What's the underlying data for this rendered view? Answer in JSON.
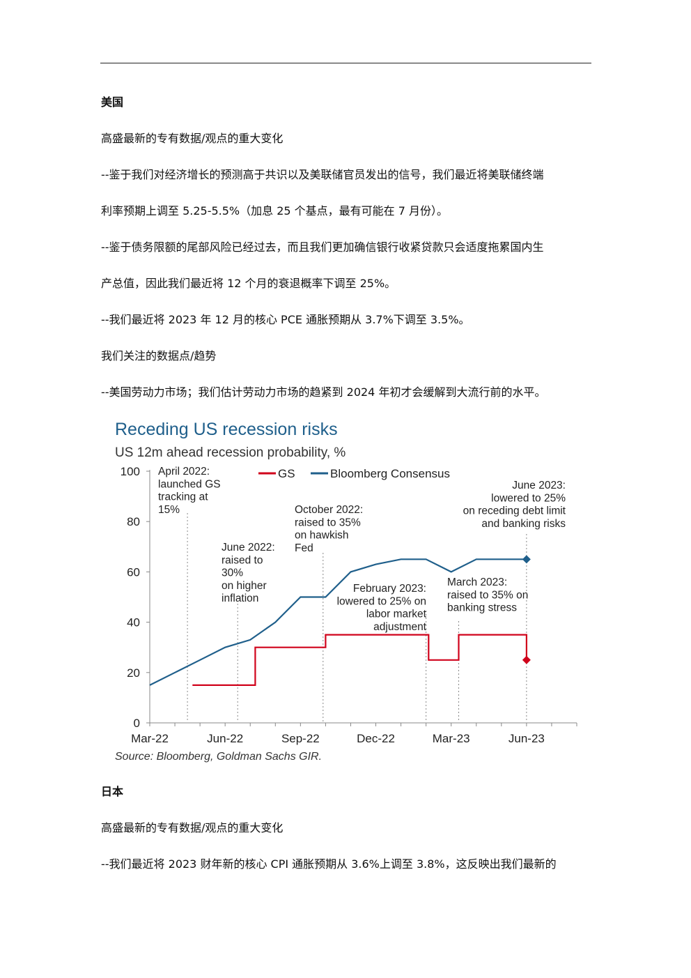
{
  "us_section": {
    "heading": "美国",
    "subheading": "高盛最新的专有数据/观点的重大变化",
    "bullet1_line1": "--鉴于我们对经济增长的预测高于共识以及美联储官员发出的信号，我们最近将美联储终端",
    "bullet1_line2": "利率预期上调至 5.25-5.5%（加息 25 个基点，最有可能在 7 月份）。",
    "bullet2_line1": "--鉴于债务限额的尾部风险已经过去，而且我们更加确信银行收紧贷款只会适度拖累国内生",
    "bullet2_line2": "产总值，因此我们最近将 12 个月的衰退概率下调至 25%。",
    "bullet3": "--我们最近将 2023 年 12 月的核心 PCE 通胀预期从 3.7%下调至 3.5%。",
    "watch_heading": "我们关注的数据点/趋势",
    "watch_bullet": "--美国劳动力市场；我们估计劳动力市场的趋紧到 2024 年初才会缓解到大流行前的水平。"
  },
  "japan_section": {
    "heading": "日本",
    "subheading": "高盛最新的专有数据/观点的重大变化",
    "bullet1_line1": "--我们最近将 2023 财年新的核心 CPI 通胀预期从 3.6%上调至 3.8%，这反映出我们最新的"
  },
  "chart_data": {
    "type": "line",
    "title": "Receding US recession risks",
    "subtitle": "US 12m ahead recession probability, %",
    "source": "Source: Bloomberg, Goldman Sachs GIR.",
    "x_tick_labels": [
      "Mar-22",
      "Jun-22",
      "Sep-22",
      "Dec-22",
      "Mar-23",
      "Jun-23"
    ],
    "xlim_months_from_mar22": [
      0,
      17
    ],
    "ylim": [
      0,
      100
    ],
    "y_ticks": [
      0,
      20,
      40,
      60,
      80,
      100
    ],
    "legend_position": "top-center",
    "colors": {
      "GS": "#d0021b",
      "Bloomberg Consensus": "#1f5f8b",
      "axis": "#888888",
      "title": "#1f5f8b"
    },
    "series": [
      {
        "name": "GS",
        "style": "step",
        "x": [
          1.7,
          4.2,
          4.2,
          7.0,
          7.0,
          11.1,
          11.1,
          12.3,
          12.3,
          15.0,
          15.0
        ],
        "y": [
          15,
          15,
          30,
          30,
          35,
          35,
          25,
          25,
          35,
          35,
          25
        ],
        "end_marker": "diamond"
      },
      {
        "name": "Bloomberg Consensus",
        "style": "line",
        "x": [
          0,
          1,
          2,
          3,
          4,
          5,
          6,
          7,
          8,
          9,
          10,
          11,
          12,
          13,
          14,
          15
        ],
        "y": [
          15,
          20,
          25,
          30,
          33,
          40,
          50,
          50,
          60,
          63,
          65,
          65,
          60,
          65,
          65,
          65
        ],
        "end_marker": "diamond"
      }
    ],
    "annotations": [
      {
        "x": 1.5,
        "lines": [
          "April 2022:",
          "launched GS",
          "tracking at",
          "15%"
        ]
      },
      {
        "x": 3.5,
        "lines": [
          "June 2022:",
          "raised to",
          "30%",
          "on higher",
          "inflation"
        ]
      },
      {
        "x": 6.9,
        "lines": [
          "October 2022:",
          "raised to 35%",
          "on hawkish",
          "Fed"
        ]
      },
      {
        "x": 11.0,
        "lines": [
          "February 2023:",
          "lowered to 25% on",
          "labor market",
          "adjustment"
        ]
      },
      {
        "x": 12.3,
        "lines": [
          "March 2023:",
          "raised to 35% on",
          "banking stress"
        ]
      },
      {
        "x": 15.0,
        "lines": [
          "June 2023:",
          "lowered to 25%",
          "on receding debt limit",
          "and banking risks"
        ]
      }
    ]
  }
}
